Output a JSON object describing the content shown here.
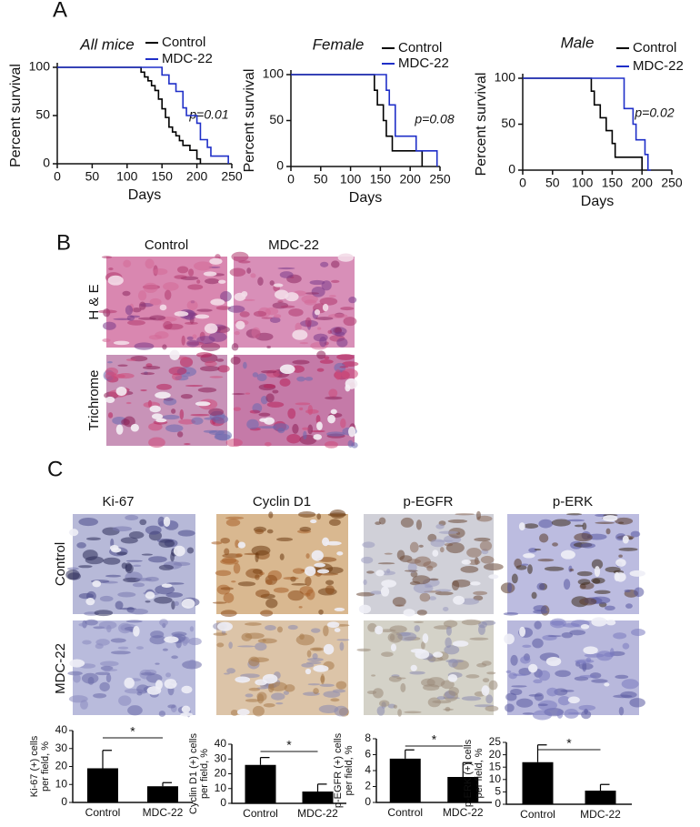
{
  "panel_labels": [
    "A",
    "B",
    "C"
  ],
  "histology": {
    "columns": [
      "Control",
      "MDC-22"
    ],
    "rows": [
      "H & E",
      "Trichrome"
    ]
  },
  "ihc": {
    "columns": [
      "Ki-67",
      "Cyclin D1",
      "p-EGFR",
      "p-ERK"
    ],
    "rows": [
      "Control",
      "MDC-22"
    ]
  },
  "chart_data": [
    {
      "type": "line",
      "title": "All mice",
      "x_label": "Days",
      "y_label": "Percent survival",
      "annotation": "p=0.01",
      "xlim": [
        0,
        250
      ],
      "ylim": [
        0,
        100
      ],
      "xticks": [
        0,
        50,
        100,
        150,
        200,
        250
      ],
      "yticks": [
        0,
        50,
        100
      ],
      "series": [
        {
          "name": "Control",
          "color": "#000000",
          "x": [
            0,
            120,
            125,
            130,
            135,
            140,
            145,
            150,
            155,
            160,
            165,
            170,
            175,
            180,
            190,
            200,
            205
          ],
          "values": [
            100,
            95,
            90,
            86,
            81,
            76,
            67,
            57,
            48,
            38,
            33,
            29,
            24,
            19,
            14,
            5,
            0
          ]
        },
        {
          "name": "MDC-22",
          "color": "#1f2fc8",
          "x": [
            0,
            150,
            160,
            170,
            180,
            185,
            200,
            205,
            215,
            220,
            230,
            245
          ],
          "values": [
            100,
            92,
            83,
            75,
            58,
            50,
            42,
            25,
            17,
            8,
            8,
            0
          ]
        }
      ]
    },
    {
      "type": "line",
      "title": "Female",
      "x_label": "Days",
      "y_label": "Percent survival",
      "annotation": "p=0.08",
      "xlim": [
        0,
        250
      ],
      "ylim": [
        0,
        100
      ],
      "xticks": [
        0,
        50,
        100,
        150,
        200,
        250
      ],
      "yticks": [
        0,
        50,
        100
      ],
      "series": [
        {
          "name": "Control",
          "color": "#000000",
          "x": [
            0,
            140,
            145,
            155,
            160,
            170,
            180,
            220
          ],
          "values": [
            100,
            83,
            67,
            50,
            33,
            17,
            17,
            0
          ]
        },
        {
          "name": "MDC-22",
          "color": "#1f2fc8",
          "x": [
            0,
            160,
            165,
            175,
            185,
            210,
            215,
            245
          ],
          "values": [
            100,
            83,
            67,
            33,
            33,
            17,
            17,
            0
          ]
        }
      ]
    },
    {
      "type": "line",
      "title": "Male",
      "x_label": "Days",
      "y_label": "Percent survival",
      "annotation": "p=0.02",
      "xlim": [
        0,
        250
      ],
      "ylim": [
        0,
        100
      ],
      "xticks": [
        0,
        50,
        100,
        150,
        200,
        250
      ],
      "yticks": [
        0,
        50,
        100
      ],
      "series": [
        {
          "name": "Control",
          "color": "#000000",
          "x": [
            0,
            115,
            120,
            130,
            140,
            150,
            155,
            175,
            200
          ],
          "values": [
            100,
            86,
            71,
            57,
            43,
            29,
            14,
            14,
            0
          ]
        },
        {
          "name": "MDC-22",
          "color": "#1f2fc8",
          "x": [
            0,
            170,
            175,
            185,
            190,
            205,
            210,
            215
          ],
          "values": [
            100,
            67,
            67,
            50,
            33,
            17,
            0,
            0
          ]
        }
      ]
    },
    {
      "type": "bar",
      "y_label": [
        "Ki-67 (+) cells",
        "per field, %"
      ],
      "categories": [
        "Control",
        "MDC-22"
      ],
      "values": [
        19,
        9
      ],
      "errors": [
        10,
        2
      ],
      "color": "#000000",
      "annotation": "*",
      "ylim": [
        0,
        40
      ],
      "yticks": [
        0,
        10,
        20,
        30,
        40
      ]
    },
    {
      "type": "bar",
      "y_label": [
        "Cyclin D1 (+) cells",
        "per field, %"
      ],
      "categories": [
        "Control",
        "MDC-22"
      ],
      "values": [
        26,
        8
      ],
      "errors": [
        5,
        5
      ],
      "color": "#000000",
      "annotation": "*",
      "ylim": [
        0,
        40
      ],
      "yticks": [
        0,
        10,
        20,
        30,
        40
      ]
    },
    {
      "type": "bar",
      "y_label": [
        "p-EGFR (+) cells",
        "per field, %"
      ],
      "categories": [
        "Control",
        "MDC-22"
      ],
      "values": [
        5.5,
        3.2
      ],
      "errors": [
        1.1,
        1.8
      ],
      "color": "#000000",
      "annotation": "*",
      "ylim": [
        0,
        8
      ],
      "yticks": [
        0,
        2,
        4,
        6,
        8
      ]
    },
    {
      "type": "bar",
      "y_label": [
        "p-ERK (+) cells",
        "per field, %"
      ],
      "categories": [
        "Control",
        "MDC-22"
      ],
      "values": [
        17,
        5.5
      ],
      "errors": [
        7,
        2.5
      ],
      "color": "#000000",
      "annotation": "*",
      "ylim": [
        0,
        25
      ],
      "yticks": [
        0,
        5,
        10,
        15,
        20,
        25
      ]
    }
  ]
}
